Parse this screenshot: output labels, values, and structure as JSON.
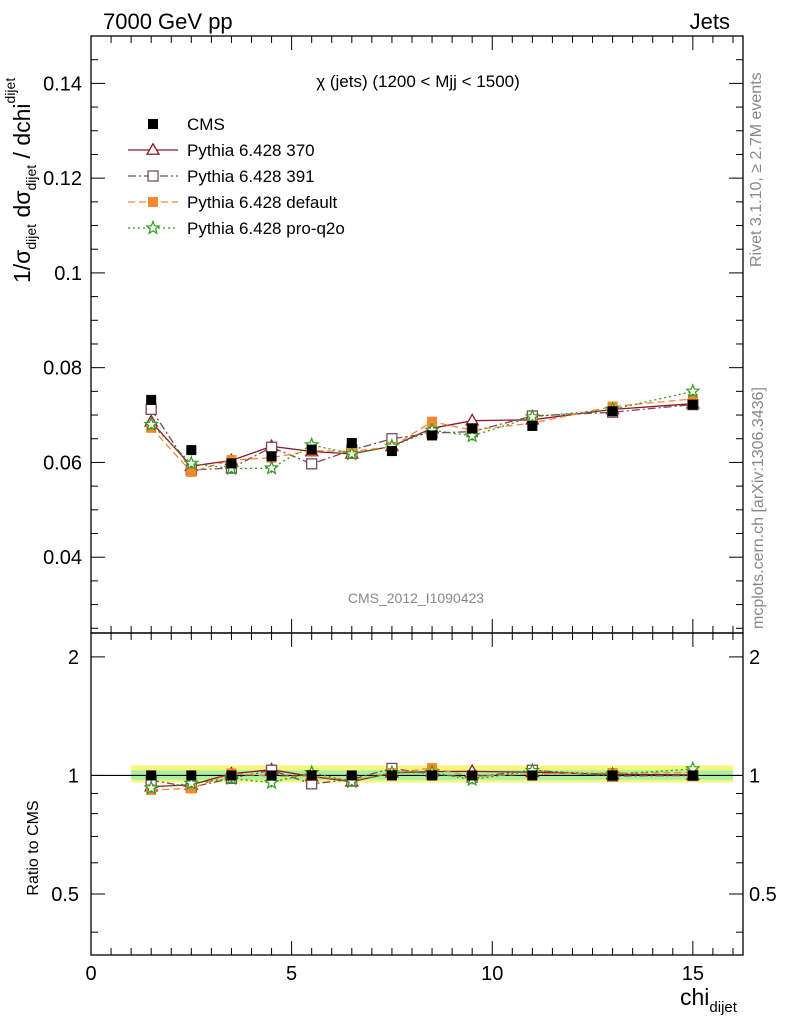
{
  "header": {
    "left": "7000 GeV pp",
    "right": "Jets"
  },
  "side_labels": {
    "rivet": "Rivet 3.1.10, ≥ 2.7M events",
    "mcplots": "mcplots.cern.ch [arXiv:1306.3436]"
  },
  "watermark": "CMS_2012_I1090423",
  "chart_data": {
    "type": "scatter",
    "title": "χ (jets) (1200 < Mjj < 1500)",
    "xlabel": {
      "main": "chi",
      "sub": "dijet"
    },
    "ylabel": {
      "p1": "1/σ",
      "s1": "dijet",
      "p2": " dσ",
      "s2": "dijet",
      "p3": " / dchi",
      "s3": "dijet"
    },
    "ratio_ylabel": "Ratio to CMS",
    "xlim": [
      0,
      16.25
    ],
    "ylim": [
      0.024,
      0.15
    ],
    "ratio_ylim": [
      0.35,
      2.3
    ],
    "x_ticks": [
      0,
      5,
      10,
      15
    ],
    "y_ticks": [
      0.04,
      0.06,
      0.08,
      0.1,
      0.12,
      0.14
    ],
    "ratio_ticks": [
      0.5,
      1,
      2
    ],
    "legend_position": "top-left",
    "x": [
      1.5,
      2.5,
      3.5,
      4.5,
      5.5,
      6.5,
      7.5,
      8.5,
      9.5,
      11,
      13,
      15
    ],
    "x_edges": [
      1,
      2,
      3,
      4,
      5,
      6,
      7,
      8,
      9,
      10,
      12,
      14,
      16
    ],
    "series": [
      {
        "name": "CMS",
        "color": "#000000",
        "marker": "filled-square",
        "line": "none",
        "values": [
          0.0732,
          0.0626,
          0.0598,
          0.0613,
          0.0627,
          0.0641,
          0.0624,
          0.0657,
          0.0672,
          0.0677,
          0.0708,
          0.0722
        ],
        "ratio": [
          1,
          1,
          1,
          1,
          1,
          1,
          1,
          1,
          1,
          1,
          1,
          1
        ],
        "ratio_band": [
          0.96,
          1.06
        ]
      },
      {
        "name": "Pythia 6.428 370",
        "color": "#8b1a2b",
        "marker": "open-triangle",
        "line": "solid",
        "values": [
          0.0686,
          0.0592,
          0.0604,
          0.0634,
          0.0623,
          0.0618,
          0.0634,
          0.0672,
          0.0688,
          0.069,
          0.0712,
          0.0724
        ],
        "ratio": [
          0.937,
          0.946,
          1.01,
          1.034,
          0.994,
          0.964,
          1.016,
          1.023,
          1.024,
          1.019,
          1.006,
          1.003
        ]
      },
      {
        "name": "Pythia 6.428 391",
        "color": "#7a4a5a",
        "marker": "open-square",
        "line": "dashdot",
        "values": [
          0.0712,
          0.0584,
          0.0588,
          0.0632,
          0.0597,
          0.0626,
          0.065,
          0.0662,
          0.0665,
          0.0698,
          0.0706,
          0.0722
        ],
        "ratio": [
          0.973,
          0.933,
          0.983,
          1.031,
          0.952,
          0.977,
          1.042,
          1.008,
          0.99,
          1.031,
          0.997,
          1.0
        ]
      },
      {
        "name": "Pythia 6.428 default",
        "color": "#f5892c",
        "marker": "filled-square",
        "line": "dashed",
        "values": [
          0.0673,
          0.058,
          0.0605,
          0.061,
          0.0625,
          0.0623,
          0.0633,
          0.0686,
          0.0668,
          0.0683,
          0.0718,
          0.0734
        ],
        "ratio": [
          0.919,
          0.927,
          1.012,
          0.995,
          0.997,
          0.972,
          1.014,
          1.044,
          0.994,
          1.009,
          1.014,
          1.017
        ]
      },
      {
        "name": "Pythia 6.428 pro-q2o",
        "color": "#2f9a1f",
        "marker": "open-star",
        "line": "dotted",
        "values": [
          0.068,
          0.0598,
          0.0587,
          0.0588,
          0.0637,
          0.0618,
          0.0634,
          0.0668,
          0.0656,
          0.0696,
          0.0712,
          0.075
        ],
        "ratio": [
          0.929,
          0.955,
          0.982,
          0.959,
          1.016,
          0.964,
          1.016,
          1.017,
          0.976,
          1.028,
          1.006,
          1.039
        ]
      }
    ]
  }
}
